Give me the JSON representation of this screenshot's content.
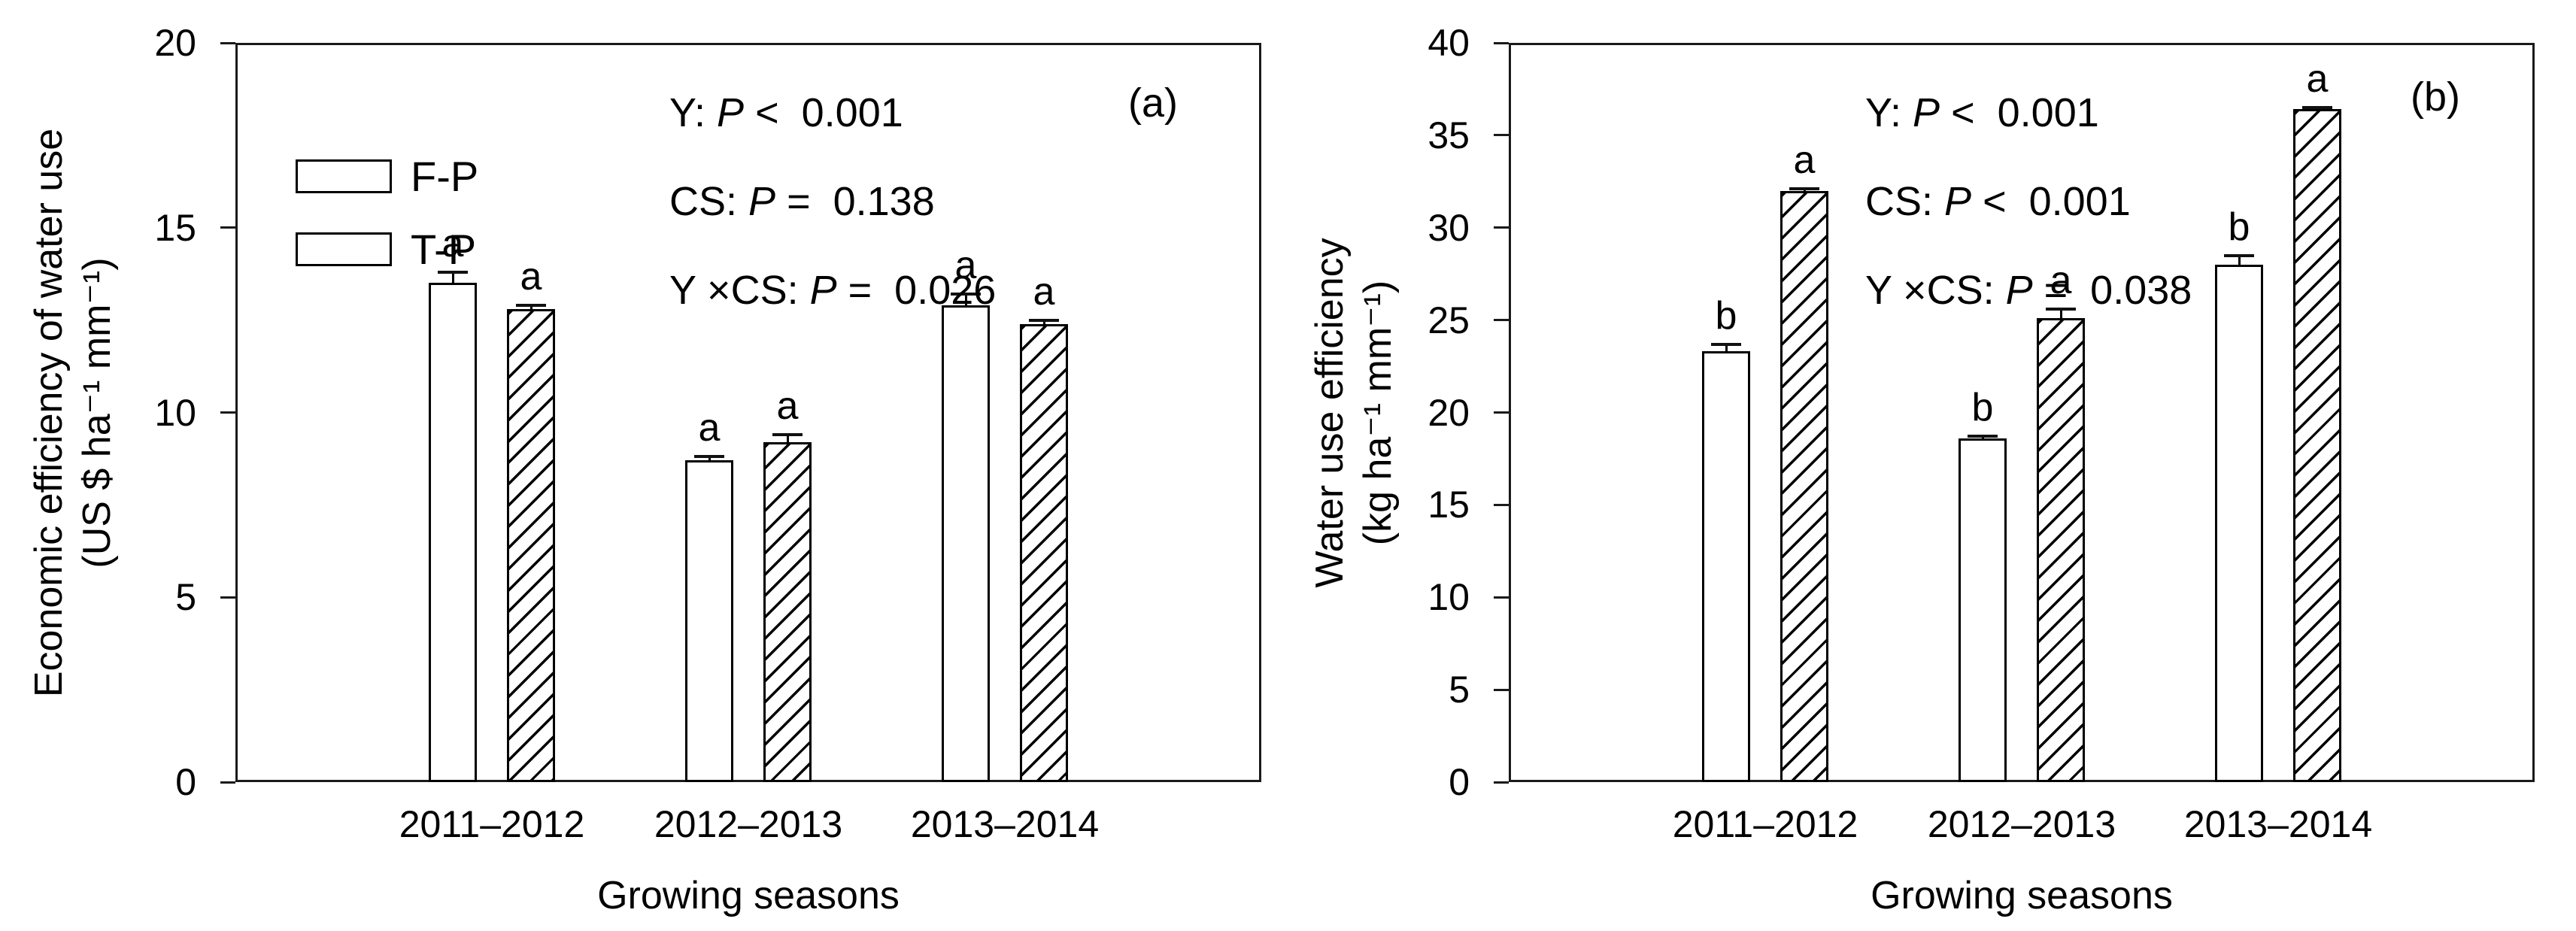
{
  "figure": {
    "background": "#ffffff",
    "text_color": "#000000",
    "series_names": [
      "F-P",
      "T-P"
    ]
  },
  "chart_data": [
    {
      "type": "bar",
      "panel_label": "(a)",
      "ylabel_lines": [
        "Economic efficiency of water use",
        "(US $ ha⁻¹ mm⁻¹)"
      ],
      "xlabel": "Growing seasons",
      "categories": [
        "2011–2012",
        "2012–2013",
        "2013–2014"
      ],
      "ylim": [
        0,
        20
      ],
      "ytick_step": 5,
      "grid": false,
      "legend_position": "upper-left-inside",
      "legend": {
        "entries": [
          {
            "label": "F-P",
            "fill": "open"
          },
          {
            "label": "T-P",
            "fill": "hatched"
          }
        ]
      },
      "series": [
        {
          "name": "F-P",
          "fill": "open",
          "values": [
            13.5,
            8.7,
            12.9
          ],
          "errors": [
            0.3,
            0.1,
            0.3
          ],
          "letters": [
            "a",
            "a",
            "a"
          ]
        },
        {
          "name": "T-P",
          "fill": "hatched",
          "values": [
            12.8,
            9.2,
            12.4
          ],
          "errors": [
            0.1,
            0.2,
            0.1
          ],
          "letters": [
            "a",
            "a",
            "a"
          ]
        }
      ],
      "stats_lines": [
        {
          "factor": "Y",
          "p": "P",
          "relation": "<",
          "value": "0.001"
        },
        {
          "factor": "CS",
          "p": "P",
          "relation": "=",
          "value": "0.138"
        },
        {
          "factor": "Y ×CS",
          "p": "P",
          "relation": "=",
          "value": "0.026"
        }
      ]
    },
    {
      "type": "bar",
      "panel_label": "(b)",
      "ylabel_lines": [
        "Water use efficiency",
        "(kg ha⁻¹ mm⁻¹)"
      ],
      "xlabel": "Growing seasons",
      "categories": [
        "2011–2012",
        "2012–2013",
        "2013–2014"
      ],
      "ylim": [
        0,
        40
      ],
      "ytick_step": 5,
      "grid": false,
      "series": [
        {
          "name": "F-P",
          "fill": "open",
          "values": [
            23.3,
            18.6,
            28.0
          ],
          "errors": [
            0.4,
            0.1,
            0.5
          ],
          "letters": [
            "b",
            "b",
            "b"
          ]
        },
        {
          "name": "T-P",
          "fill": "hatched",
          "values": [
            32.0,
            25.1,
            36.4
          ],
          "errors": [
            0.1,
            0.5,
            0.1
          ],
          "letters": [
            "a",
            "a",
            "a"
          ]
        }
      ],
      "stats_lines": [
        {
          "factor": "Y",
          "p": "P",
          "relation": "<",
          "value": "0.001"
        },
        {
          "factor": "CS",
          "p": "P",
          "relation": "<",
          "value": "0.001"
        },
        {
          "factor": "Y ×CS",
          "p": "P",
          "relation": "=",
          "value": "0.038"
        }
      ]
    }
  ]
}
